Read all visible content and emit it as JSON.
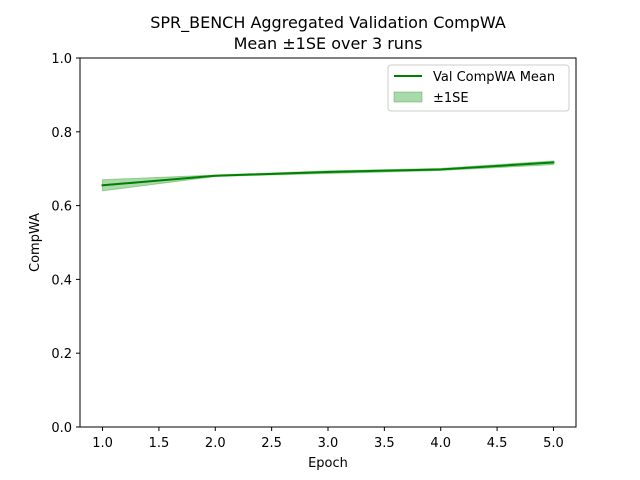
{
  "chart_data": {
    "type": "line",
    "title": "SPR_BENCH Aggregated Validation CompWA",
    "subtitle": "Mean ±1SE over 3 runs",
    "xlabel": "Epoch",
    "ylabel": "CompWA",
    "xlim": [
      0.8,
      5.2
    ],
    "ylim": [
      0.0,
      1.0
    ],
    "x_ticks": [
      "1.0",
      "1.5",
      "2.0",
      "2.5",
      "3.0",
      "3.5",
      "4.0",
      "4.5",
      "5.0"
    ],
    "y_ticks": [
      "0.0",
      "0.2",
      "0.4",
      "0.6",
      "0.8",
      "1.0"
    ],
    "grid": false,
    "legend_position": "upper right",
    "x": [
      1,
      2,
      3,
      4,
      5
    ],
    "series": [
      {
        "name": "Val CompWA Mean",
        "values": [
          0.655,
          0.681,
          0.691,
          0.698,
          0.717
        ],
        "color": "#008000"
      }
    ],
    "bands": [
      {
        "name": "±1SE",
        "lower": [
          0.64,
          0.679,
          0.687,
          0.695,
          0.711
        ],
        "upper": [
          0.67,
          0.683,
          0.694,
          0.701,
          0.721
        ],
        "color": "#2ca02c",
        "opacity": 0.4
      }
    ]
  }
}
